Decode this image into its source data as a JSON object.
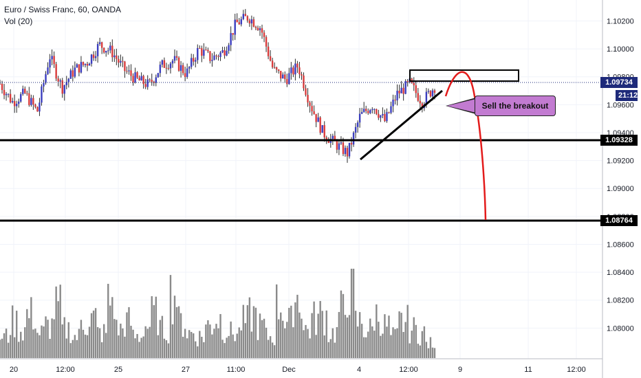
{
  "legend": {
    "symbol": "Euro / Swiss Franc, 60, OANDA",
    "volume": "Vol (20)"
  },
  "price_axis": {
    "ticks": [
      "1.10200",
      "1.10000",
      "1.09800",
      "1.09600",
      "1.09400",
      "1.09200",
      "1.09000",
      "1.08800",
      "1.08600",
      "1.08400",
      "1.08200",
      "1.08000"
    ],
    "current_price": "1.09734",
    "countdown": "21:12",
    "support_1": "1.09328",
    "support_2": "1.08764"
  },
  "time_axis": {
    "ticks": [
      "20",
      "12:00",
      "25",
      "27",
      "11:00",
      "Dec",
      "4",
      "12:00",
      "9",
      "11",
      "12:00"
    ]
  },
  "annotation": {
    "text": "Sell the breakout"
  },
  "colors": {
    "up_candle": "#3a3dbf",
    "down_candle": "#d93b3b",
    "wick": "#2a2a2a",
    "current_price_line": "#1e2a7a",
    "horizontal_lines": "#000000",
    "projection": "#e31b1b",
    "annotation_bg": "#c27bd1",
    "volume_bar": "#8a8a8a"
  },
  "chart_data": {
    "type": "candlestick",
    "title": "Euro / Swiss Franc, 60, OANDA",
    "ylim": [
      1.0778,
      1.1035
    ],
    "horizontal_levels": [
      1.09328,
      1.08764
    ],
    "current_price": 1.09734,
    "close_path": [
      {
        "t": "20",
        "v": 1.0975
      },
      {
        "t": "20",
        "v": 1.0962
      },
      {
        "t": "20",
        "v": 1.0968
      },
      {
        "t": "20",
        "v": 1.0955
      },
      {
        "t": "20",
        "v": 1.0995
      },
      {
        "t": "12:00",
        "v": 1.0972
      },
      {
        "t": "12:00",
        "v": 1.0985
      },
      {
        "t": "12:00",
        "v": 1.099
      },
      {
        "t": "12:00",
        "v": 1.1003
      },
      {
        "t": "25",
        "v": 1.0998
      },
      {
        "t": "25",
        "v": 1.0985
      },
      {
        "t": "25",
        "v": 1.0978
      },
      {
        "t": "25",
        "v": 1.0974
      },
      {
        "t": "27",
        "v": 1.0988
      },
      {
        "t": "27",
        "v": 1.0992
      },
      {
        "t": "27",
        "v": 1.0982
      },
      {
        "t": "11:00",
        "v": 1.1
      },
      {
        "t": "11:00",
        "v": 1.0993
      },
      {
        "t": "11:00",
        "v": 1.0998
      },
      {
        "t": "11:00",
        "v": 1.1018
      },
      {
        "t": "Dec",
        "v": 1.1023
      },
      {
        "t": "Dec",
        "v": 1.1015
      },
      {
        "t": "Dec",
        "v": 1.0985
      },
      {
        "t": "Dec",
        "v": 1.0978
      },
      {
        "t": "Dec",
        "v": 1.0988
      },
      {
        "t": "Dec",
        "v": 1.096
      },
      {
        "t": "Dec",
        "v": 1.094
      },
      {
        "t": "4",
        "v": 1.0932
      },
      {
        "t": "4",
        "v": 1.0925
      },
      {
        "t": "4",
        "v": 1.0952
      },
      {
        "t": "4",
        "v": 1.096
      },
      {
        "t": "4",
        "v": 1.0948
      },
      {
        "t": "12:00",
        "v": 1.0968
      },
      {
        "t": "12:00",
        "v": 1.0975
      },
      {
        "t": "12:00",
        "v": 1.0962
      },
      {
        "t": "12:00",
        "v": 1.0973
      }
    ],
    "volume_relative": [
      0.3,
      0.5,
      0.4,
      0.6,
      0.35,
      0.45,
      0.7,
      0.4,
      0.3,
      0.5,
      0.55,
      0.35,
      0.8,
      0.4,
      0.5,
      0.3,
      0.45,
      0.6,
      0.4,
      0.9,
      0.5,
      0.35,
      0.3,
      0.45,
      0.55,
      0.4,
      0.35,
      0.5,
      0.6,
      0.45,
      0.3,
      0.75,
      0.5,
      0.85,
      0.4,
      0.55,
      0.6,
      0.35,
      0.65,
      1.0,
      0.5,
      0.4,
      0.6,
      0.45,
      0.3,
      0.5,
      0.4,
      0.35,
      0.2,
      0.1
    ],
    "volume_axis_labels": [],
    "annotations": [
      "Sell the breakout"
    ]
  }
}
